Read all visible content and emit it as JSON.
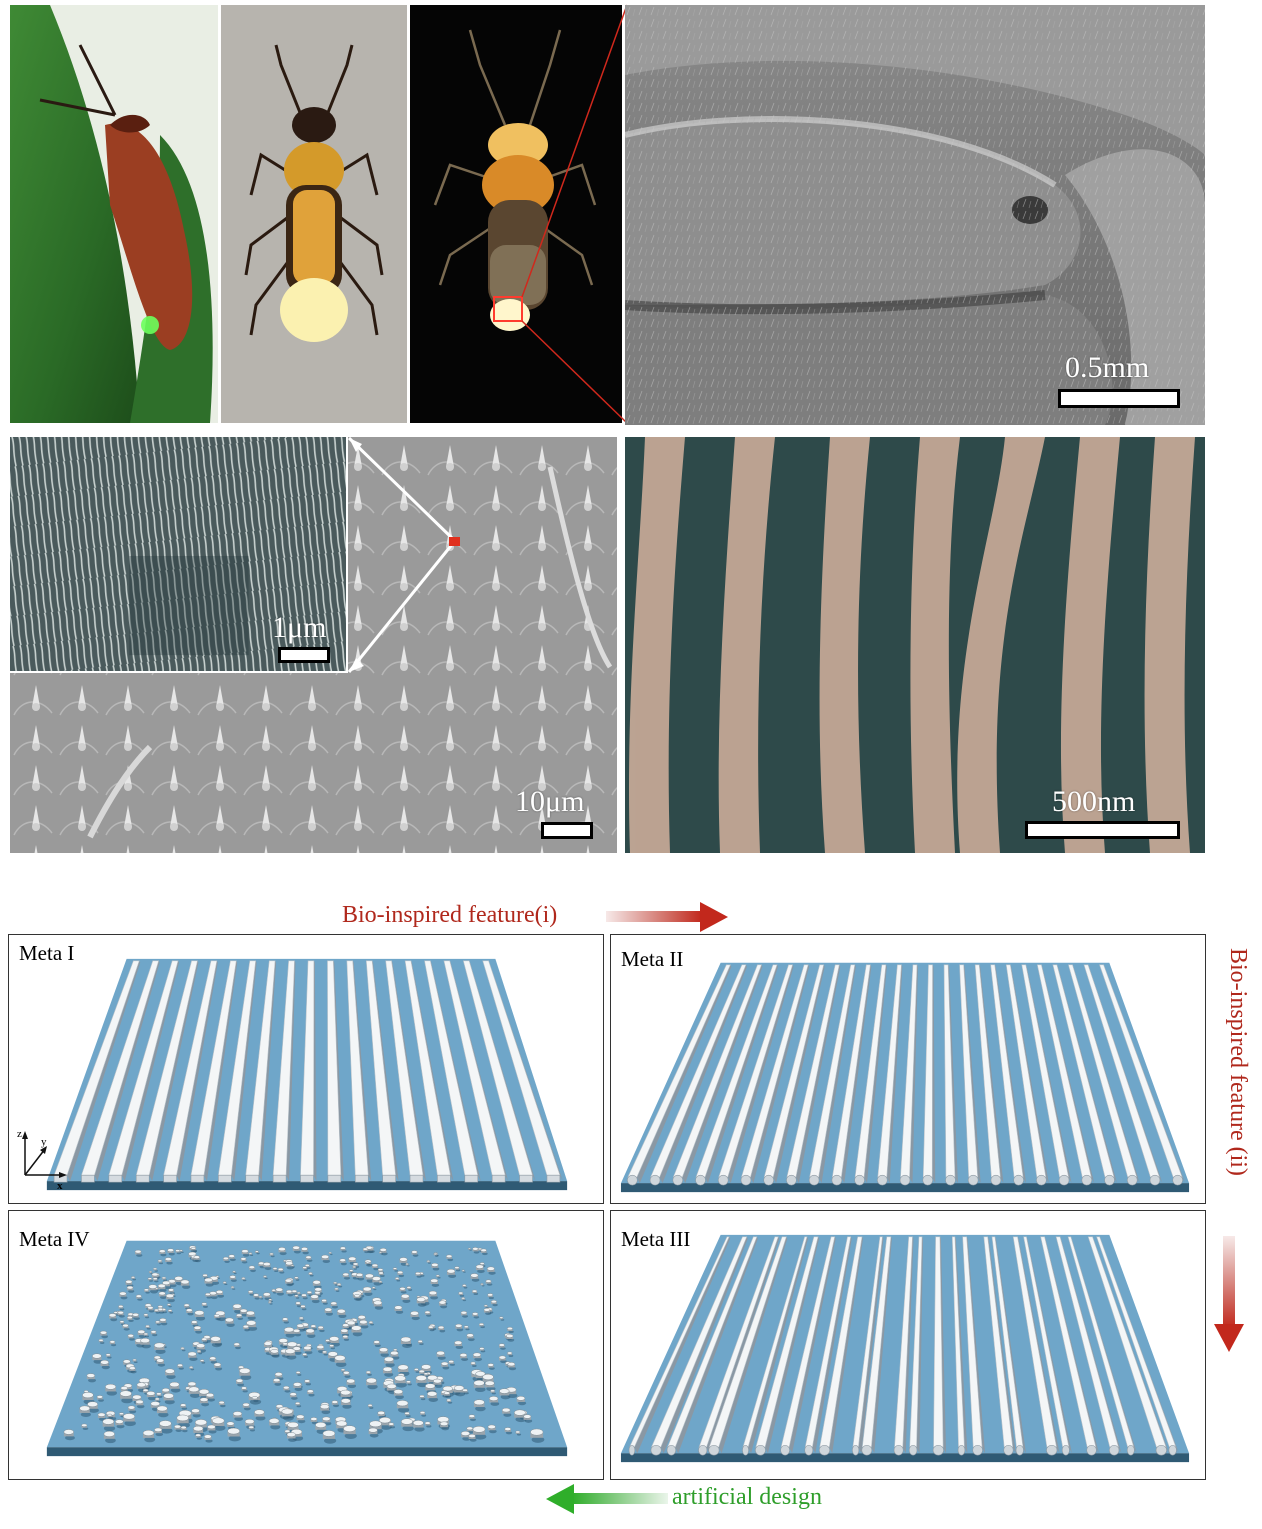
{
  "photos": {
    "scale_sem_top": "0.5mm",
    "scale_inset": "1μm",
    "scale_sem_mid": "10μm",
    "scale_sem_right": "500nm"
  },
  "design": {
    "arrow_top_label": "Bio-inspired feature(i)",
    "arrow_right_label": "Bio-inspired feature (ii)",
    "arrow_bottom_label": "artificial design",
    "meta1": "Meta I",
    "meta2": "Meta II",
    "meta3": "Meta III",
    "meta4": "Meta IV",
    "axis_z": "z",
    "axis_y": "y",
    "axis_x": "x"
  },
  "colors": {
    "leaf_green": "#2f7a2c",
    "substrate_blue": "#6fa6c9",
    "bio_red": "#b0281c",
    "artificial_green": "#2e9e2a"
  }
}
